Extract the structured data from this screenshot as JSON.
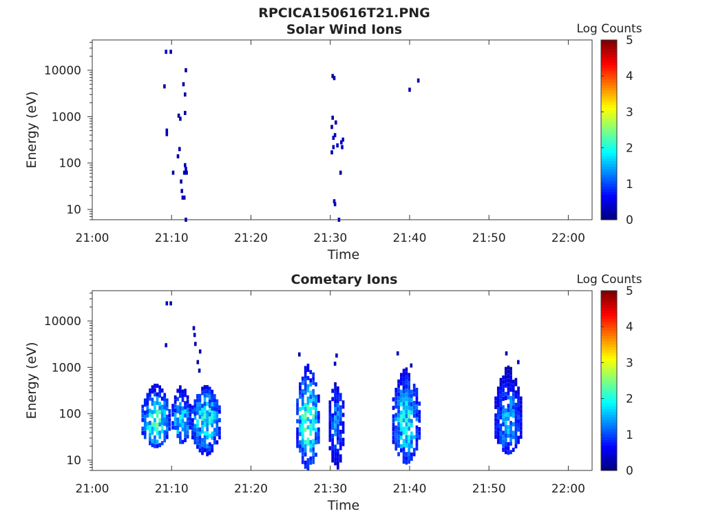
{
  "figure_title": "RPCICA150616T21.PNG",
  "chart_data": [
    {
      "type": "heatmap",
      "title": "Solar Wind Ions",
      "xlabel": "Time",
      "ylabel": "Energy (eV)",
      "y_scale": "log",
      "xlim": [
        "21:00",
        "22:03"
      ],
      "ylim": [
        6,
        45000
      ],
      "x_ticks": [
        "21:00",
        "21:10",
        "21:20",
        "21:30",
        "21:40",
        "21:50",
        "22:00"
      ],
      "y_ticks": [
        "10",
        "100",
        "1000",
        "10000"
      ],
      "y_tick_values": [
        10,
        100,
        1000,
        10000
      ],
      "colorbar": {
        "label": "Log Counts",
        "range": [
          0,
          5
        ],
        "ticks": [
          "0",
          "1",
          "2",
          "3",
          "4",
          "5"
        ],
        "colormap": "jet"
      },
      "grid": false,
      "points": [
        {
          "t": 9.3,
          "e": 25000,
          "c": 0.3
        },
        {
          "t": 9.9,
          "e": 25000,
          "c": 0.3
        },
        {
          "t": 9.1,
          "e": 4500,
          "c": 0.2
        },
        {
          "t": 11.8,
          "e": 10000,
          "c": 0.2
        },
        {
          "t": 11.5,
          "e": 5000,
          "c": 0.2
        },
        {
          "t": 11.7,
          "e": 3000,
          "c": 0.2
        },
        {
          "t": 10.9,
          "e": 1050,
          "c": 0.2
        },
        {
          "t": 11.1,
          "e": 900,
          "c": 0.2
        },
        {
          "t": 11.7,
          "e": 1200,
          "c": 0.2
        },
        {
          "t": 9.4,
          "e": 500,
          "c": 0.3
        },
        {
          "t": 9.4,
          "e": 420,
          "c": 0.3
        },
        {
          "t": 11.0,
          "e": 200,
          "c": 0.2
        },
        {
          "t": 10.8,
          "e": 140,
          "c": 0.2
        },
        {
          "t": 11.7,
          "e": 90,
          "c": 0.3
        },
        {
          "t": 11.8,
          "e": 75,
          "c": 0.3
        },
        {
          "t": 11.6,
          "e": 62,
          "c": 0.3
        },
        {
          "t": 11.9,
          "e": 62,
          "c": 0.3
        },
        {
          "t": 10.2,
          "e": 62,
          "c": 0.2
        },
        {
          "t": 11.2,
          "e": 40,
          "c": 0.2
        },
        {
          "t": 11.3,
          "e": 25,
          "c": 0.3
        },
        {
          "t": 11.4,
          "e": 18,
          "c": 0.3
        },
        {
          "t": 11.6,
          "e": 18,
          "c": 0.3
        },
        {
          "t": 11.8,
          "e": 6,
          "c": 0.2
        },
        {
          "t": 30.3,
          "e": 7500,
          "c": 0.2
        },
        {
          "t": 30.5,
          "e": 6800,
          "c": 0.2
        },
        {
          "t": 30.3,
          "e": 950,
          "c": 0.2
        },
        {
          "t": 30.7,
          "e": 750,
          "c": 0.2
        },
        {
          "t": 30.2,
          "e": 600,
          "c": 0.2
        },
        {
          "t": 30.6,
          "e": 400,
          "c": 0.3
        },
        {
          "t": 30.4,
          "e": 350,
          "c": 0.3
        },
        {
          "t": 31.6,
          "e": 320,
          "c": 0.3
        },
        {
          "t": 31.4,
          "e": 280,
          "c": 0.3
        },
        {
          "t": 30.9,
          "e": 240,
          "c": 0.3
        },
        {
          "t": 30.4,
          "e": 220,
          "c": 0.3
        },
        {
          "t": 31.5,
          "e": 220,
          "c": 0.3
        },
        {
          "t": 30.2,
          "e": 170,
          "c": 0.2
        },
        {
          "t": 31.3,
          "e": 62,
          "c": 0.2
        },
        {
          "t": 30.5,
          "e": 15,
          "c": 0.3
        },
        {
          "t": 30.6,
          "e": 13,
          "c": 0.3
        },
        {
          "t": 31.1,
          "e": 6,
          "c": 0.2
        },
        {
          "t": 40.0,
          "e": 3800,
          "c": 0.2
        },
        {
          "t": 41.1,
          "e": 6000,
          "c": 0.2
        }
      ]
    },
    {
      "type": "heatmap",
      "title": "Cometary Ions",
      "xlabel": "Time",
      "ylabel": "Energy (eV)",
      "y_scale": "log",
      "xlim": [
        "21:00",
        "22:03"
      ],
      "ylim": [
        6,
        45000
      ],
      "x_ticks": [
        "21:00",
        "21:10",
        "21:20",
        "21:30",
        "21:40",
        "21:50",
        "22:00"
      ],
      "y_ticks": [
        "10",
        "100",
        "1000",
        "10000"
      ],
      "y_tick_values": [
        10,
        100,
        1000,
        10000
      ],
      "colorbar": {
        "label": "Log Counts",
        "range": [
          0,
          5
        ],
        "ticks": [
          "0",
          "1",
          "2",
          "3",
          "4",
          "5"
        ],
        "colormap": "jet"
      },
      "grid": false,
      "points": [
        {
          "t": 9.4,
          "e": 24000,
          "c": 0.3
        },
        {
          "t": 9.9,
          "e": 24000,
          "c": 0.3
        },
        {
          "t": 12.8,
          "e": 7000,
          "c": 0.3
        },
        {
          "t": 12.9,
          "e": 5000,
          "c": 0.3
        },
        {
          "t": 13.0,
          "e": 3200,
          "c": 0.2
        },
        {
          "t": 9.3,
          "e": 3000,
          "c": 0.3
        },
        {
          "t": 13.6,
          "e": 2200,
          "c": 0.2
        },
        {
          "t": 13.3,
          "e": 1300,
          "c": 0.2
        },
        {
          "t": 13.5,
          "e": 850,
          "c": 0.2
        },
        {
          "t": 26.1,
          "e": 1900,
          "c": 0.2
        },
        {
          "t": 30.8,
          "e": 1800,
          "c": 0.3
        },
        {
          "t": 30.6,
          "e": 1200,
          "c": 0.3
        },
        {
          "t": 38.5,
          "e": 2000,
          "c": 0.3
        },
        {
          "t": 40.2,
          "e": 1100,
          "c": 0.2
        },
        {
          "t": 52.2,
          "e": 2000,
          "c": 0.2
        },
        {
          "t": 53.7,
          "e": 1300,
          "c": 0.3
        }
      ],
      "clusters": [
        {
          "t_start": 6.2,
          "t_end": 9.9,
          "e_low": 18,
          "e_high": 450,
          "peak_log_counts": 2.3
        },
        {
          "t_start": 10.0,
          "t_end": 12.5,
          "e_low": 22,
          "e_high": 420,
          "peak_log_counts": 2.0
        },
        {
          "t_start": 12.5,
          "t_end": 16.2,
          "e_low": 12,
          "e_high": 420,
          "peak_log_counts": 2.2
        },
        {
          "t_start": 25.7,
          "t_end": 28.7,
          "e_low": 6,
          "e_high": 1200,
          "peak_log_counts": 2.4
        },
        {
          "t_start": 29.8,
          "t_end": 31.8,
          "e_low": 6,
          "e_high": 500,
          "peak_log_counts": 1.4
        },
        {
          "t_start": 37.8,
          "t_end": 41.4,
          "e_low": 8,
          "e_high": 1000,
          "peak_log_counts": 2.1
        },
        {
          "t_start": 50.7,
          "t_end": 54.2,
          "e_low": 13,
          "e_high": 1100,
          "peak_log_counts": 1.6
        }
      ]
    }
  ]
}
